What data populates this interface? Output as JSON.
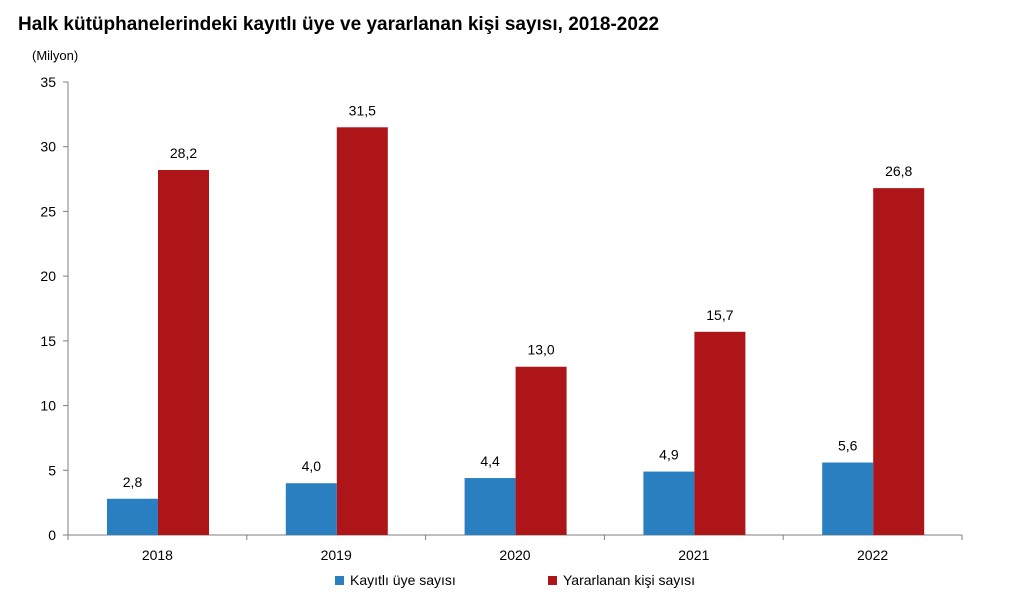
{
  "chart_data": {
    "type": "bar",
    "title": "Halk kütüphanelerindeki kayıtlı üye ve yararlanan kişi sayısı, 2018-2022",
    "unit_label": "(Milyon)",
    "categories": [
      "2018",
      "2019",
      "2020",
      "2021",
      "2022"
    ],
    "series": [
      {
        "name": "Kayıtlı üye sayısı",
        "color": "#2a7fc1",
        "values": [
          2.8,
          4.0,
          4.4,
          4.9,
          5.6
        ],
        "labels": [
          "2,8",
          "4,0",
          "4,4",
          "4,9",
          "5,6"
        ]
      },
      {
        "name": "Yararlanan kişi sayısı",
        "color": "#ad1519",
        "values": [
          28.2,
          31.5,
          13.0,
          15.7,
          26.8
        ],
        "labels": [
          "28,2",
          "31,5",
          "13,0",
          "15,7",
          "26,8"
        ]
      }
    ],
    "ylim": [
      0,
      35
    ],
    "yticks": [
      0,
      5,
      10,
      15,
      20,
      25,
      30,
      35
    ],
    "grid": false,
    "legend_position": "bottom"
  }
}
